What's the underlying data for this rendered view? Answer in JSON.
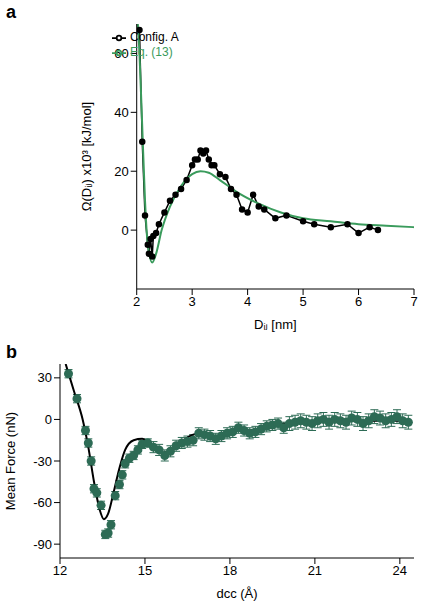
{
  "chart_data": [
    {
      "panel_label": "a",
      "type": "line",
      "x_label": "Dᵢⱼ [nm]",
      "y_label": "Ω(Dᵢⱼ) x10³ [kJ/mol]",
      "xlim": [
        2,
        7
      ],
      "xticks": [
        2,
        3,
        4,
        5,
        6,
        7
      ],
      "ylim": [
        -20,
        70
      ],
      "yticks": [
        0,
        20,
        40,
        60
      ],
      "legend": "upper left",
      "series": [
        {
          "name": "Config. A",
          "type": "line",
          "color": "#000000",
          "marker": "circle",
          "x": [
            2.05,
            2.1,
            2.15,
            2.2,
            2.22,
            2.25,
            2.28,
            2.3,
            2.35,
            2.4,
            2.5,
            2.6,
            2.7,
            2.8,
            2.9,
            3.0,
            3.05,
            3.1,
            3.15,
            3.2,
            3.25,
            3.3,
            3.35,
            3.4,
            3.5,
            3.6,
            3.7,
            3.8,
            3.9,
            4.0,
            4.1,
            4.2,
            4.3,
            4.5,
            4.7,
            5.0,
            5.2,
            5.5,
            5.8,
            6.0,
            6.2,
            6.35
          ],
          "values": [
            68,
            30,
            5,
            -5,
            -8,
            -3,
            -9,
            -2,
            -1,
            2,
            6,
            10,
            12,
            14,
            17,
            22,
            24,
            24,
            27,
            26,
            27,
            24,
            22,
            22,
            19,
            18,
            14,
            12,
            7,
            6,
            12,
            8,
            7,
            4,
            5,
            3,
            2,
            1,
            2,
            -1,
            1,
            0
          ]
        },
        {
          "name": "Eq. (13)",
          "type": "line",
          "color": "#3a9b5c",
          "marker": "none",
          "x": [
            2.02,
            2.05,
            2.1,
            2.15,
            2.2,
            2.28,
            2.35,
            2.45,
            2.6,
            2.8,
            3.0,
            3.15,
            3.3,
            3.5,
            3.8,
            4.2,
            4.6,
            5.0,
            5.5,
            6.0,
            6.5,
            7.0
          ],
          "values": [
            70,
            60,
            35,
            10,
            -5,
            -11,
            -8,
            0,
            8,
            15,
            19,
            20,
            19.5,
            17,
            13,
            9,
            6,
            4,
            3,
            2,
            1.5,
            1
          ]
        }
      ]
    },
    {
      "panel_label": "b",
      "type": "scatter",
      "x_label": "dcc (Å)",
      "y_label": "Mean Force (nN)",
      "xlim": [
        12,
        24.5
      ],
      "xticks": [
        12,
        15,
        18,
        21,
        24
      ],
      "ylim": [
        -100,
        40
      ],
      "yticks": [
        -90,
        -60,
        -30,
        0,
        30
      ],
      "series": [
        {
          "type": "scatter",
          "color": "#2d6b55",
          "marker": "circle",
          "x": [
            12.3,
            12.6,
            12.9,
            13.0,
            13.1,
            13.2,
            13.3,
            13.45,
            13.6,
            13.7,
            13.8,
            13.95,
            14.1,
            14.2,
            14.3,
            14.45,
            14.6,
            14.75,
            14.9,
            15.1,
            15.3,
            15.5,
            15.7,
            15.9,
            16.1,
            16.3,
            16.5,
            16.7,
            16.9,
            17.1,
            17.3,
            17.5,
            17.7,
            17.9,
            18.1,
            18.3,
            18.5,
            18.7,
            18.9,
            19.1,
            19.3,
            19.5,
            19.7,
            19.9,
            20.1,
            20.3,
            20.5,
            20.7,
            20.9,
            21.1,
            21.3,
            21.5,
            21.7,
            21.9,
            22.1,
            22.3,
            22.5,
            22.7,
            22.9,
            23.1,
            23.3,
            23.5,
            23.7,
            23.9,
            24.1,
            24.3
          ],
          "values": [
            33,
            15,
            -8,
            -17,
            -30,
            -50,
            -53,
            -62,
            -83,
            -82,
            -76,
            -55,
            -47,
            -40,
            -32,
            -28,
            -26,
            -22,
            -18,
            -17,
            -20,
            -22,
            -26,
            -23,
            -19,
            -17,
            -16,
            -15,
            -10,
            -11,
            -12,
            -14,
            -12,
            -10,
            -9,
            -6,
            -8,
            -10,
            -9,
            -7,
            -5,
            -4,
            -3,
            -6,
            -3,
            -2,
            -1,
            -2,
            -3,
            -1,
            0,
            -2,
            0,
            -1,
            -2,
            1,
            0,
            -3,
            -1,
            2,
            1,
            -1,
            0,
            2,
            -1,
            -2
          ],
          "errors": [
            3,
            3,
            3,
            3,
            3,
            3,
            3,
            3,
            3,
            3,
            3,
            3,
            3,
            3,
            3,
            3,
            3,
            3,
            3,
            3,
            4,
            4,
            4,
            4,
            4,
            4,
            4,
            4,
            4,
            4,
            4,
            4,
            4,
            4,
            4,
            4,
            4,
            4,
            4,
            4,
            4,
            4,
            4,
            4,
            5,
            5,
            5,
            5,
            5,
            5,
            5,
            5,
            5,
            5,
            5,
            5,
            5,
            5,
            5,
            5,
            5,
            5,
            5,
            5,
            5,
            5
          ]
        },
        {
          "type": "line",
          "color": "#000000",
          "marker": "none",
          "x": [
            12.2,
            12.5,
            12.8,
            13.0,
            13.2,
            13.4,
            13.55,
            13.7,
            13.9,
            14.1,
            14.3,
            14.6,
            14.9,
            15.2,
            15.6,
            15.9,
            16.3,
            16.7,
            17.0,
            17.4,
            17.8,
            18.2,
            18.6,
            19.0,
            19.5,
            20.0,
            20.5,
            21.0,
            22.0,
            23.0,
            24.0
          ],
          "values": [
            40,
            20,
            0,
            -20,
            -45,
            -65,
            -72,
            -68,
            -52,
            -35,
            -22,
            -15,
            -14,
            -18,
            -24,
            -23,
            -16,
            -11,
            -10,
            -13,
            -11,
            -7,
            -8,
            -7,
            -4,
            -3,
            -2,
            -2,
            -1,
            -1,
            -1
          ]
        }
      ]
    }
  ]
}
